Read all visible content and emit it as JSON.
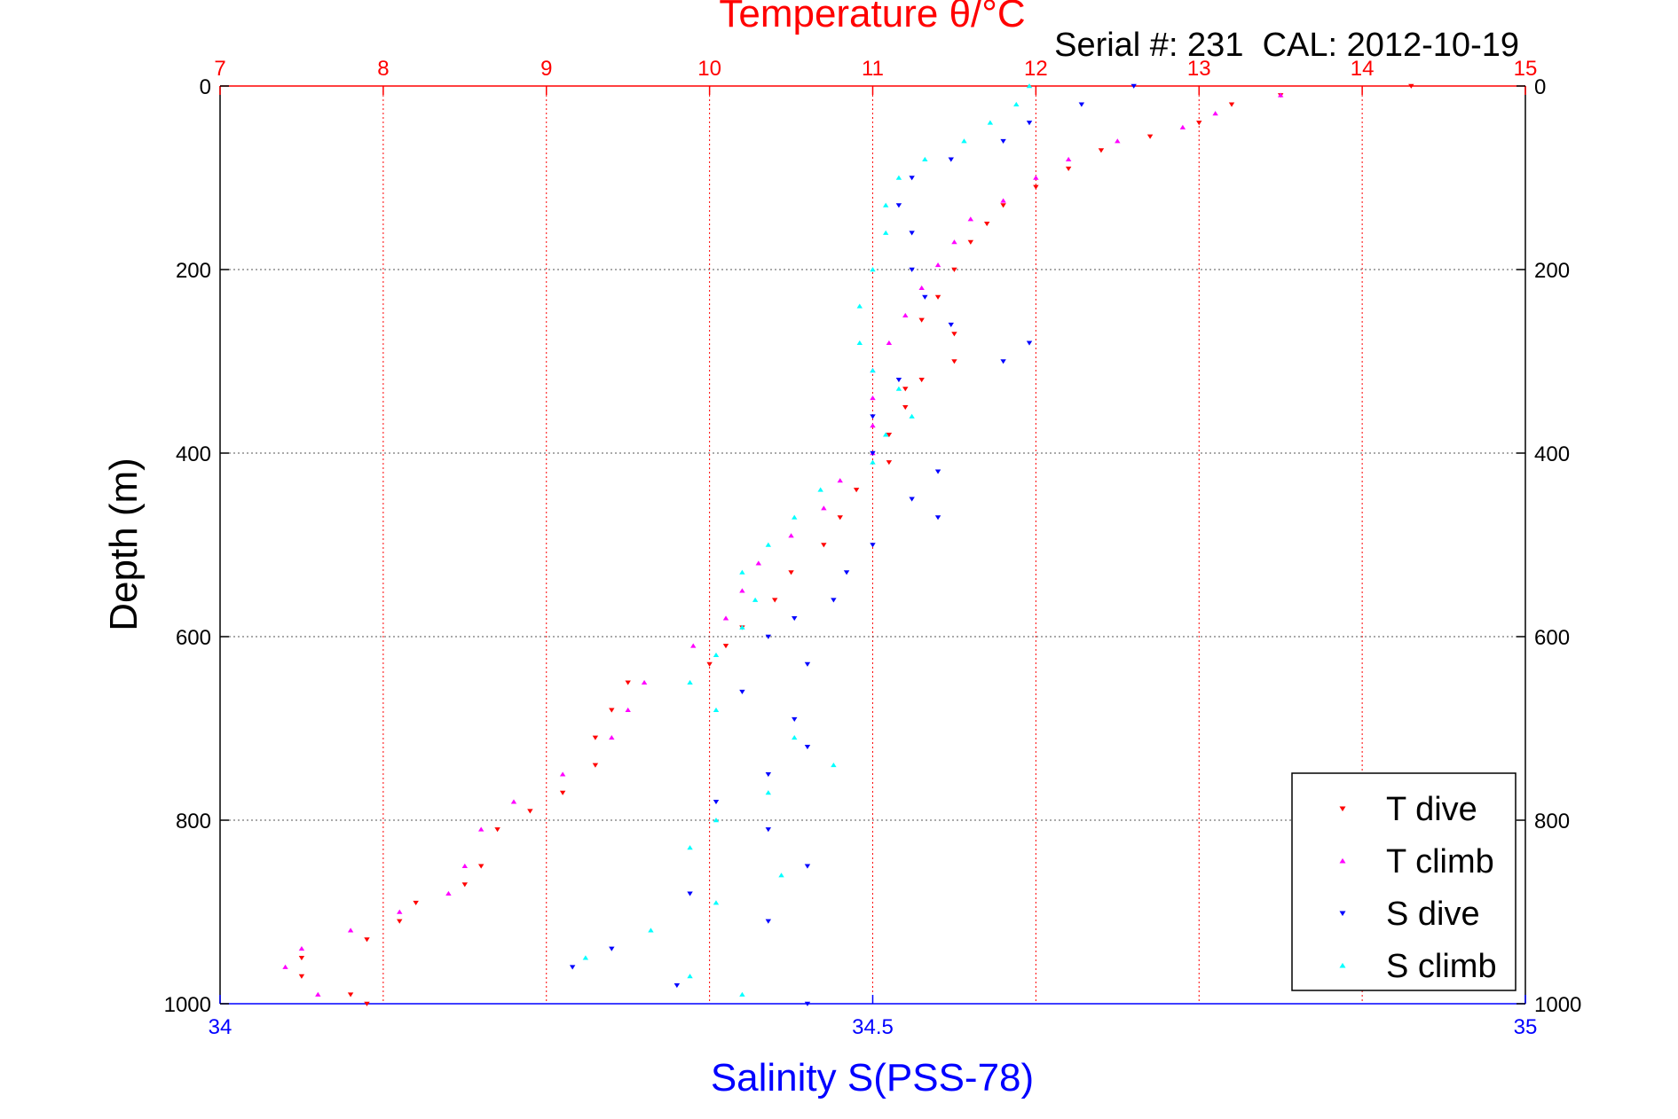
{
  "chart_data": {
    "type": "scatter",
    "title": "Temperature θ/°C",
    "subtitle": "Serial #: 231  CAL: 2012-10-19",
    "ylabel": "Depth (m)",
    "xlabel_bottom": "Salinity S(PSS-78)",
    "xlabel_top": "Temperature θ/°C",
    "ylim": [
      0,
      1000
    ],
    "y_reversed": true,
    "y_ticks": [
      "0",
      "200",
      "400",
      "600",
      "800",
      "1000"
    ],
    "x_bottom_lim": [
      34,
      35
    ],
    "x_bottom_ticks": [
      "34",
      "34.5",
      "35"
    ],
    "x_top_lim": [
      7,
      15
    ],
    "x_top_ticks": [
      "7",
      "8",
      "9",
      "10",
      "11",
      "12",
      "13",
      "14",
      "15"
    ],
    "grid": true,
    "legend_position": "bottom-right",
    "colors": {
      "temperature_axis": "#ff0000",
      "salinity_axis": "#0000ff",
      "grid": "#555555"
    },
    "series": [
      {
        "name": "T dive",
        "axis": "temperature",
        "color": "#ff0000",
        "marker": "triangle-down",
        "points": [
          [
            14.3,
            0
          ],
          [
            13.5,
            10
          ],
          [
            13.2,
            20
          ],
          [
            13.0,
            40
          ],
          [
            12.7,
            55
          ],
          [
            12.4,
            70
          ],
          [
            12.2,
            90
          ],
          [
            12.0,
            110
          ],
          [
            11.8,
            130
          ],
          [
            11.7,
            150
          ],
          [
            11.6,
            170
          ],
          [
            11.5,
            200
          ],
          [
            11.4,
            230
          ],
          [
            11.3,
            255
          ],
          [
            11.5,
            270
          ],
          [
            11.5,
            300
          ],
          [
            11.3,
            320
          ],
          [
            11.2,
            330
          ],
          [
            11.2,
            350
          ],
          [
            11.1,
            380
          ],
          [
            11.1,
            410
          ],
          [
            10.9,
            440
          ],
          [
            10.8,
            470
          ],
          [
            10.7,
            500
          ],
          [
            10.5,
            530
          ],
          [
            10.4,
            560
          ],
          [
            10.2,
            590
          ],
          [
            10.1,
            610
          ],
          [
            10.0,
            630
          ],
          [
            9.5,
            650
          ],
          [
            9.4,
            680
          ],
          [
            9.3,
            710
          ],
          [
            9.3,
            740
          ],
          [
            9.1,
            770
          ],
          [
            8.9,
            790
          ],
          [
            8.7,
            810
          ],
          [
            8.6,
            850
          ],
          [
            8.5,
            870
          ],
          [
            8.2,
            890
          ],
          [
            8.1,
            910
          ],
          [
            7.9,
            930
          ],
          [
            7.5,
            950
          ],
          [
            7.5,
            970
          ],
          [
            7.8,
            990
          ],
          [
            7.9,
            1000
          ]
        ]
      },
      {
        "name": "T climb",
        "axis": "temperature",
        "color": "#ff00ff",
        "marker": "triangle-up",
        "points": [
          [
            13.5,
            10
          ],
          [
            13.1,
            30
          ],
          [
            12.9,
            45
          ],
          [
            12.5,
            60
          ],
          [
            12.2,
            80
          ],
          [
            12.0,
            100
          ],
          [
            11.8,
            125
          ],
          [
            11.6,
            145
          ],
          [
            11.5,
            170
          ],
          [
            11.4,
            195
          ],
          [
            11.3,
            220
          ],
          [
            11.2,
            250
          ],
          [
            11.1,
            280
          ],
          [
            11.0,
            310
          ],
          [
            11.0,
            340
          ],
          [
            11.0,
            370
          ],
          [
            11.0,
            400
          ],
          [
            10.8,
            430
          ],
          [
            10.7,
            460
          ],
          [
            10.5,
            490
          ],
          [
            10.3,
            520
          ],
          [
            10.2,
            550
          ],
          [
            10.1,
            580
          ],
          [
            9.9,
            610
          ],
          [
            9.6,
            650
          ],
          [
            9.5,
            680
          ],
          [
            9.4,
            710
          ],
          [
            9.1,
            750
          ],
          [
            8.8,
            780
          ],
          [
            8.6,
            810
          ],
          [
            8.5,
            850
          ],
          [
            8.4,
            880
          ],
          [
            8.1,
            900
          ],
          [
            7.8,
            920
          ],
          [
            7.5,
            940
          ],
          [
            7.4,
            960
          ],
          [
            7.6,
            990
          ]
        ]
      },
      {
        "name": "S dive",
        "axis": "salinity",
        "color": "#0000ff",
        "marker": "triangle-down",
        "points": [
          [
            34.7,
            0
          ],
          [
            34.66,
            20
          ],
          [
            34.62,
            40
          ],
          [
            34.6,
            60
          ],
          [
            34.56,
            80
          ],
          [
            34.53,
            100
          ],
          [
            34.52,
            130
          ],
          [
            34.53,
            160
          ],
          [
            34.53,
            200
          ],
          [
            34.54,
            230
          ],
          [
            34.56,
            260
          ],
          [
            34.62,
            280
          ],
          [
            34.6,
            300
          ],
          [
            34.52,
            320
          ],
          [
            34.5,
            360
          ],
          [
            34.5,
            400
          ],
          [
            34.55,
            420
          ],
          [
            34.53,
            450
          ],
          [
            34.55,
            470
          ],
          [
            34.5,
            500
          ],
          [
            34.48,
            530
          ],
          [
            34.47,
            560
          ],
          [
            34.44,
            580
          ],
          [
            34.42,
            600
          ],
          [
            34.45,
            630
          ],
          [
            34.4,
            660
          ],
          [
            34.44,
            690
          ],
          [
            34.45,
            720
          ],
          [
            34.42,
            750
          ],
          [
            34.38,
            780
          ],
          [
            34.42,
            810
          ],
          [
            34.45,
            850
          ],
          [
            34.36,
            880
          ],
          [
            34.42,
            910
          ],
          [
            34.3,
            940
          ],
          [
            34.27,
            960
          ],
          [
            34.35,
            980
          ],
          [
            34.45,
            1000
          ]
        ]
      },
      {
        "name": "S climb",
        "axis": "salinity",
        "color": "#00ffff",
        "marker": "triangle-up",
        "points": [
          [
            34.62,
            0
          ],
          [
            34.61,
            20
          ],
          [
            34.59,
            40
          ],
          [
            34.57,
            60
          ],
          [
            34.54,
            80
          ],
          [
            34.52,
            100
          ],
          [
            34.51,
            130
          ],
          [
            34.51,
            160
          ],
          [
            34.5,
            200
          ],
          [
            34.49,
            240
          ],
          [
            34.49,
            280
          ],
          [
            34.5,
            310
          ],
          [
            34.52,
            330
          ],
          [
            34.53,
            360
          ],
          [
            34.51,
            380
          ],
          [
            34.5,
            410
          ],
          [
            34.46,
            440
          ],
          [
            34.44,
            470
          ],
          [
            34.42,
            500
          ],
          [
            34.4,
            530
          ],
          [
            34.41,
            560
          ],
          [
            34.4,
            590
          ],
          [
            34.38,
            620
          ],
          [
            34.36,
            650
          ],
          [
            34.38,
            680
          ],
          [
            34.44,
            710
          ],
          [
            34.47,
            740
          ],
          [
            34.42,
            770
          ],
          [
            34.38,
            800
          ],
          [
            34.36,
            830
          ],
          [
            34.43,
            860
          ],
          [
            34.38,
            890
          ],
          [
            34.33,
            920
          ],
          [
            34.28,
            950
          ],
          [
            34.36,
            970
          ],
          [
            34.4,
            990
          ]
        ]
      }
    ]
  }
}
